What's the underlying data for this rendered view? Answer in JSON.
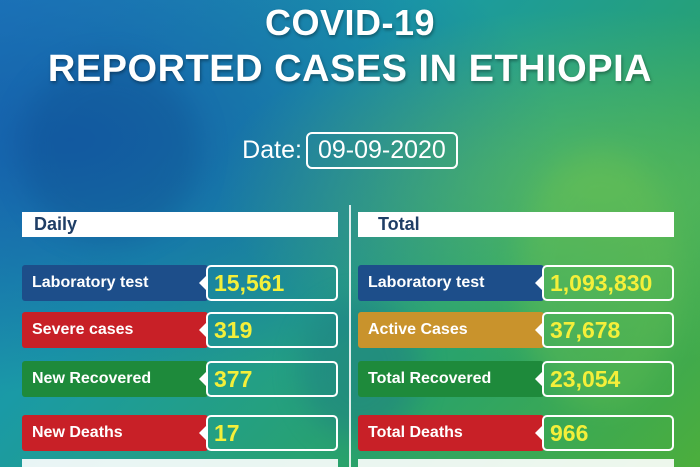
{
  "title": {
    "line1": "COVID-19",
    "line2": "REPORTED CASES IN ETHIOPIA"
  },
  "date": {
    "label": "Date:",
    "value": "09-09-2020"
  },
  "daily": {
    "header": "Daily",
    "rows": [
      {
        "label": "Laboratory test",
        "value": "15,561",
        "color": "#1d4e8a"
      },
      {
        "label": "Severe cases",
        "value": "319",
        "color": "#c82027"
      },
      {
        "label": "New Recovered",
        "value": "377",
        "color": "#1e8a3b"
      },
      {
        "label": "New Deaths",
        "value": "17",
        "color": "#c82027"
      }
    ]
  },
  "total": {
    "header": "Total",
    "rows": [
      {
        "label": "Laboratory test",
        "value": "1,093,830",
        "color": "#1d4e8a"
      },
      {
        "label": "Active Cases",
        "value": "37,678",
        "color": "#c9932c"
      },
      {
        "label": "Total Recovered",
        "value": "23,054",
        "color": "#1e8a3b"
      },
      {
        "label": "Total Deaths",
        "value": "966",
        "color": "#c82027"
      }
    ]
  },
  "colors": {
    "value_text": "#f4ef3a",
    "header_text": "#1f3e66"
  }
}
